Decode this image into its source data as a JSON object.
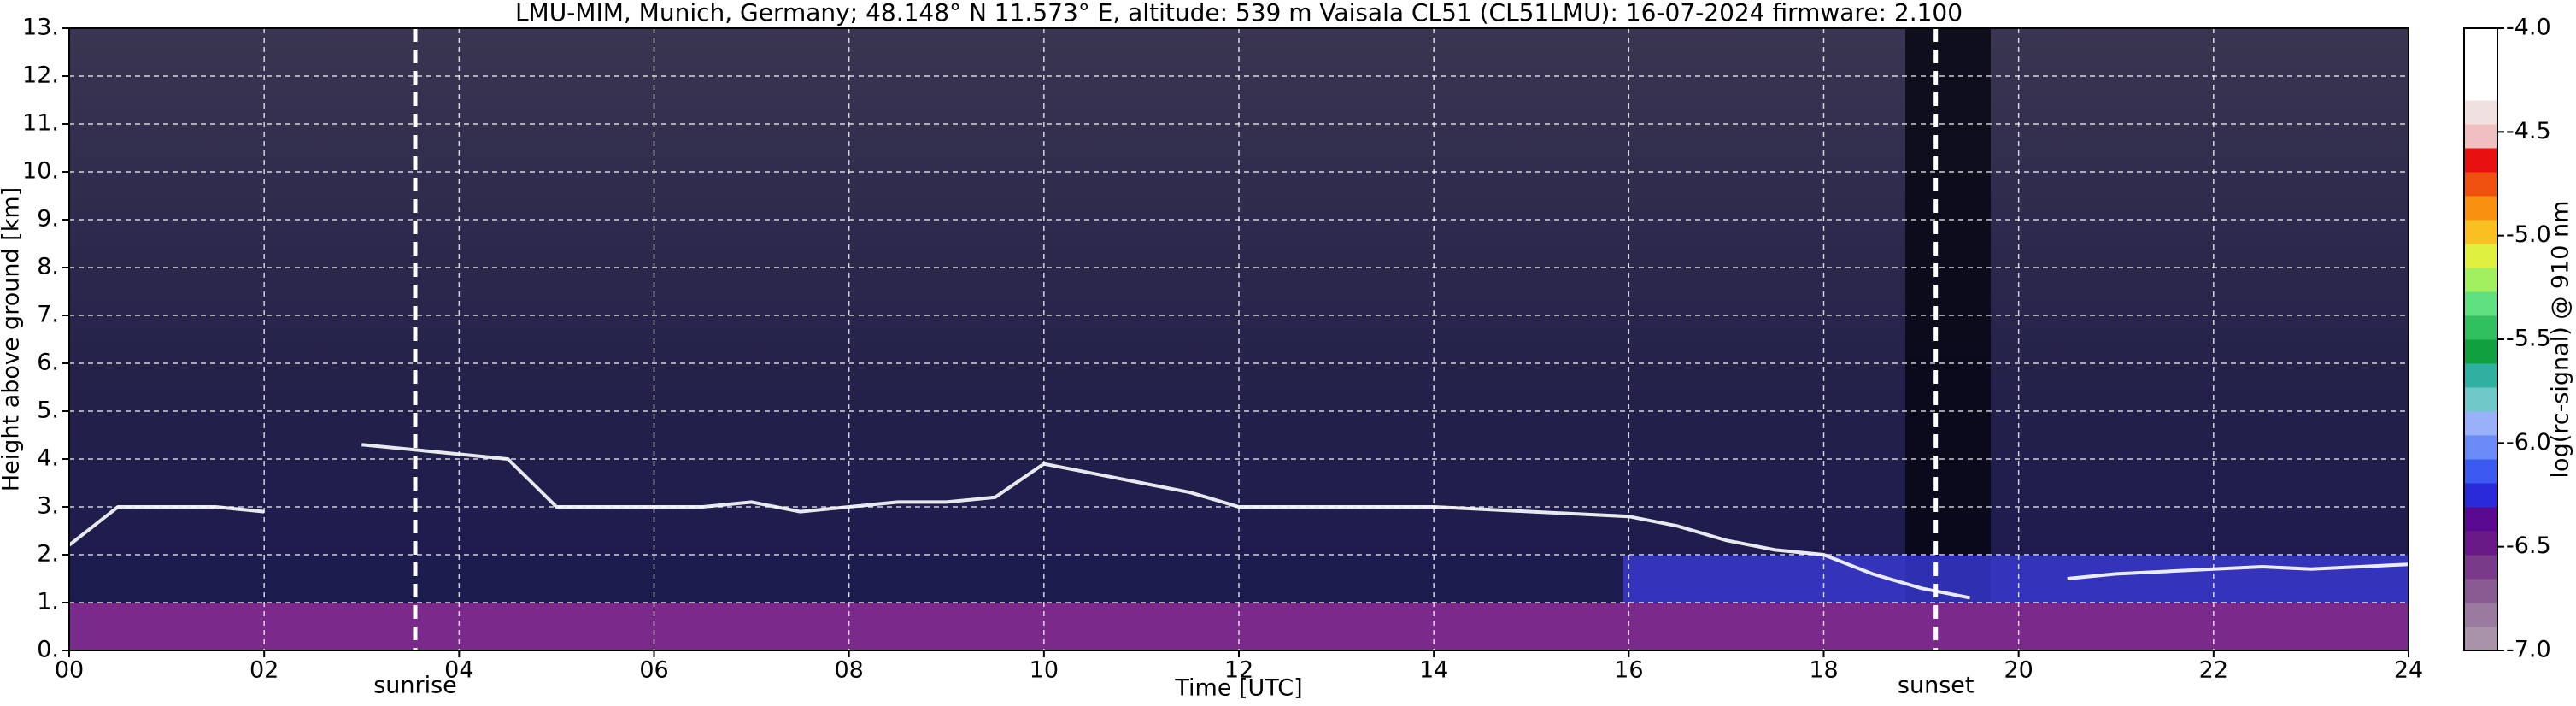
{
  "chart_data": {
    "type": "line",
    "title": "LMU-MIM, Munich, Germany; 48.148° N 11.573° E, altitude: 539 m    Vaisala CL51 (CL51LMU): 16-07-2024    firmware: 2.100",
    "xlabel": "Time [UTC]",
    "ylabel": "Height above ground [km]",
    "xlim": [
      0,
      24
    ],
    "xticks": [
      {
        "value": 0,
        "label": "00"
      },
      {
        "value": 2,
        "label": "02"
      },
      {
        "value": 4,
        "label": "04"
      },
      {
        "value": 6,
        "label": "06"
      },
      {
        "value": 8,
        "label": "08"
      },
      10,
      12,
      14,
      16,
      18,
      20,
      22,
      24
    ],
    "ylim": [
      0,
      13
    ],
    "yticks": [
      {
        "value": 0,
        "label": "0."
      },
      {
        "value": 1,
        "label": "1."
      },
      {
        "value": 2,
        "label": "2."
      },
      {
        "value": 3,
        "label": "3."
      },
      {
        "value": 4,
        "label": "4."
      },
      {
        "value": 5,
        "label": "5."
      },
      {
        "value": 6,
        "label": "6."
      },
      {
        "value": 7,
        "label": "7."
      },
      {
        "value": 8,
        "label": "8."
      },
      {
        "value": 9,
        "label": "9."
      },
      {
        "value": 10,
        "label": "10."
      },
      {
        "value": 11,
        "label": "11."
      },
      {
        "value": 12,
        "label": "12."
      },
      {
        "value": 13,
        "label": "13."
      }
    ],
    "grid": true,
    "x": [
      0,
      0.5,
      1,
      1.5,
      2,
      2.5,
      3,
      3.5,
      4,
      4.5,
      5,
      5.5,
      6,
      6.5,
      7,
      7.5,
      8,
      8.5,
      9,
      9.5,
      10,
      10.5,
      11,
      11.5,
      12,
      12.5,
      13,
      13.5,
      14,
      14.5,
      15,
      15.5,
      16,
      16.5,
      17,
      17.5,
      18,
      18.5,
      19,
      19.5,
      20,
      20.5,
      21,
      21.5,
      22,
      22.5,
      23,
      23.5,
      24
    ],
    "series": [
      {
        "color": "#ffffff",
        "values": [
          2.2,
          3.0,
          3.0,
          3.0,
          2.9,
          null,
          4.3,
          4.2,
          4.1,
          4.0,
          3.0,
          3.0,
          3.0,
          3.0,
          3.1,
          2.9,
          3.0,
          3.1,
          3.1,
          3.2,
          3.9,
          3.7,
          3.5,
          3.3,
          3.0,
          3.0,
          3.0,
          3.0,
          3.0,
          2.95,
          2.9,
          2.85,
          2.8,
          2.6,
          2.3,
          2.1,
          2.0,
          1.6,
          1.3,
          1.1,
          null,
          1.5,
          1.6,
          1.65,
          1.7,
          1.75,
          1.7,
          1.75,
          1.8
        ]
      }
    ],
    "annotations": [
      {
        "text": "sunrise",
        "x": 3.55
      },
      {
        "text": "sunset",
        "x": 19.15
      }
    ],
    "colorbar": {
      "label": "log(rc-signal) @ 910 nm",
      "clim": [
        -7.0,
        -4.0
      ],
      "ticks": [
        {
          "value": -7.0,
          "label": "-7.0"
        },
        -6.5,
        {
          "value": -6.0,
          "label": "-6.0"
        },
        -5.5,
        {
          "value": -5.0,
          "label": "-5.0"
        },
        -4.5,
        {
          "value": -4.0,
          "label": "-4.0"
        }
      ],
      "colors": [
        "#a893a8",
        "#9a7a9e",
        "#8a5a92",
        "#7a3a8a",
        "#6a1a86",
        "#5a0a90",
        "#2a2ad8",
        "#3a5af0",
        "#6a8af8",
        "#9ab0f8",
        "#70c8c8",
        "#30b0a0",
        "#10a040",
        "#30c060",
        "#60e080",
        "#a0f060",
        "#e0f040",
        "#f8c020",
        "#f89010",
        "#f05010",
        "#e81010",
        "#f0c0c0",
        "#f0e0e0",
        "#ffffff",
        "#ffffff",
        "#ffffff"
      ]
    }
  }
}
